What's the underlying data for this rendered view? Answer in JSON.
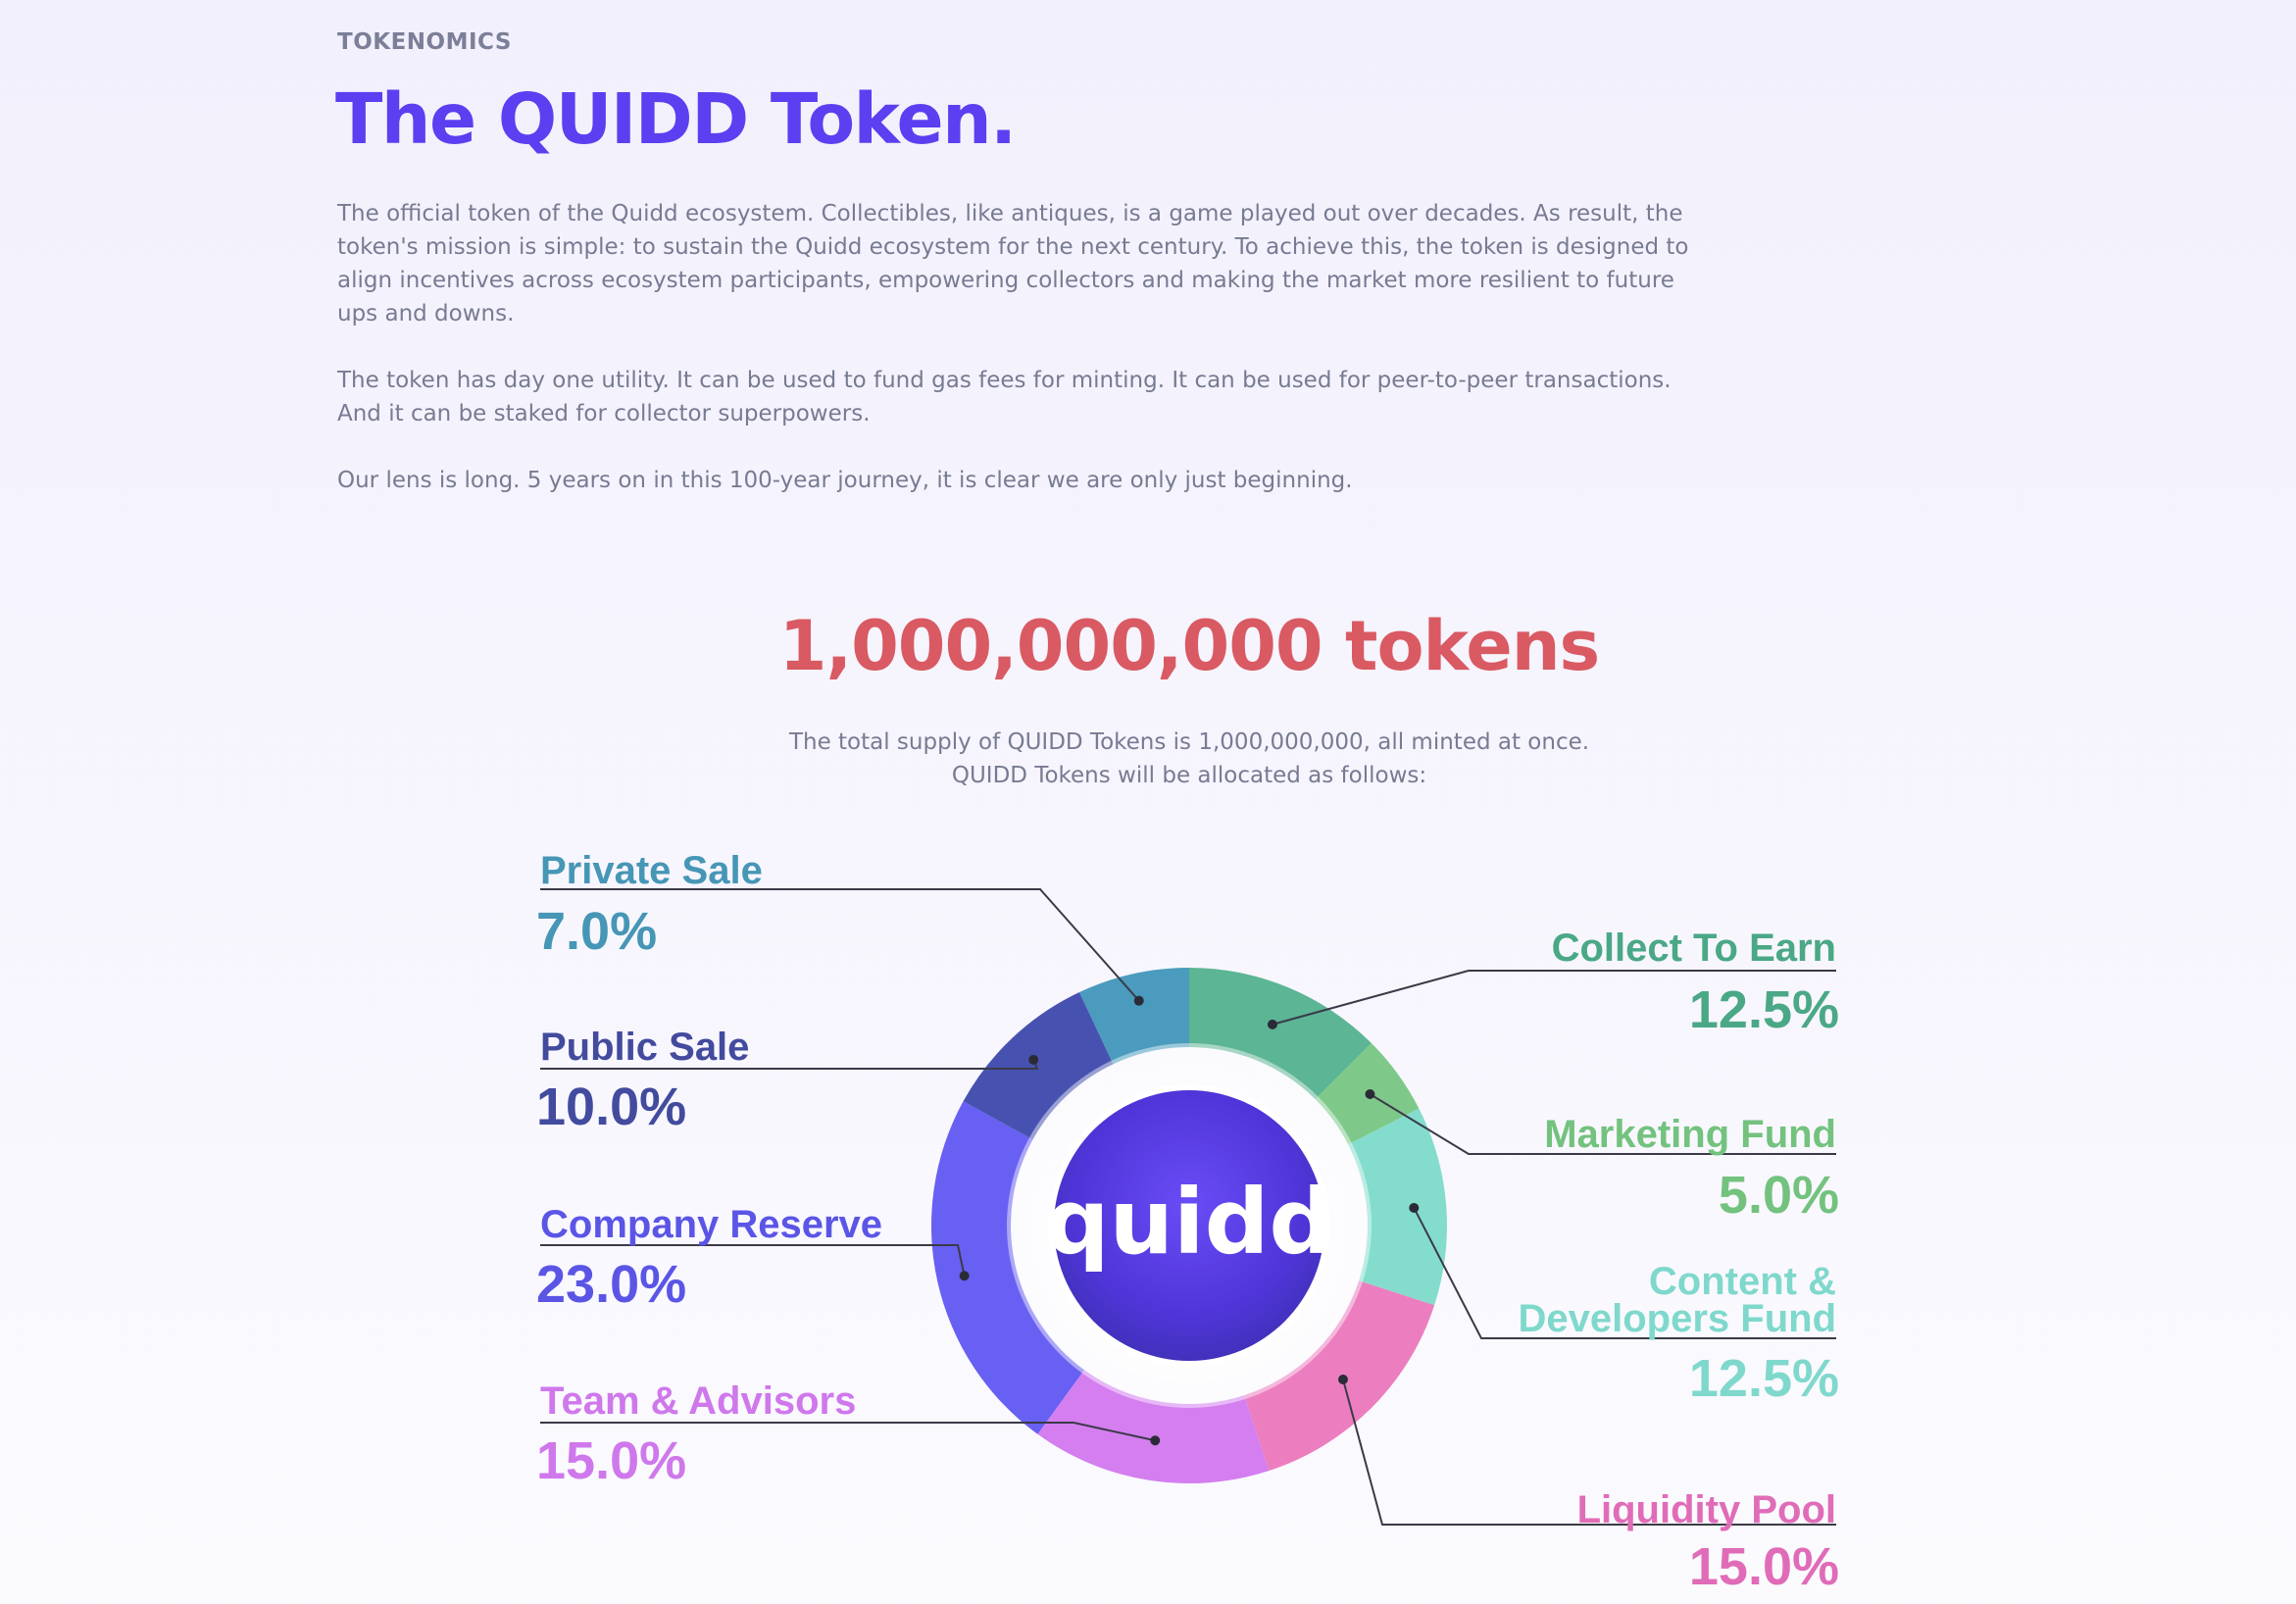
{
  "header": {
    "eyebrow": "TOKENOMICS",
    "title": "The QUIDD Token."
  },
  "intro": {
    "paragraphs": [
      "The official token of the Quidd ecosystem. Collectibles, like antiques, is a game played out over decades. As result, the token's mission is simple: to sustain the Quidd ecosystem for the next century. To achieve this, the token is designed to align incentives across ecosystem participants, empowering collectors and making the market more resilient to future ups and downs.",
      "The token has day one utility. It can be used to fund gas fees for minting. It can be used for peer-to-peer transactions. And it can be staked for collector superpowers.",
      "Our lens is long. 5 years on in this 100-year journey, it is clear we are only just beginning."
    ]
  },
  "supply": {
    "heading": "1,000,000,000 tokens",
    "line1": "The total supply of QUIDD Tokens is 1,000,000,000, all minted at once.",
    "line2": "QUIDD Tokens will be allocated as follows:"
  },
  "chart_data": {
    "type": "pie",
    "center_label": "quidd",
    "slices": [
      {
        "label": "Collect To Earn",
        "value": 12.5,
        "display": "12.5%",
        "color": "#5cb594"
      },
      {
        "label": "Marketing Fund",
        "value": 5.0,
        "display": "5.0%",
        "color": "#7ec98a"
      },
      {
        "label": "Content & Developers Fund",
        "label_lines": [
          "Content &",
          "Developers Fund"
        ],
        "value": 12.5,
        "display": "12.5%",
        "color": "#84dccd"
      },
      {
        "label": "Liquidity Pool",
        "value": 15.0,
        "display": "15.0%",
        "color": "#ec7ec0"
      },
      {
        "label": "Team & Advisors",
        "value": 15.0,
        "display": "15.0%",
        "color": "#d47ef0"
      },
      {
        "label": "Company Reserve",
        "value": 23.0,
        "display": "23.0%",
        "color": "#6860f2"
      },
      {
        "label": "Public Sale",
        "value": 10.0,
        "display": "10.0%",
        "color": "#4752b0"
      },
      {
        "label": "Private Sale",
        "value": 7.0,
        "display": "7.0%",
        "color": "#4a9bbd"
      }
    ],
    "label_colors": {
      "Collect To Earn": "#4aa886",
      "Marketing Fund": "#73c27e",
      "Content & Developers Fund": "#7fd8cc",
      "Liquidity Pool": "#e06cb8",
      "Team & Advisors": "#cf78ec",
      "Company Reserve": "#5b55e6",
      "Public Sale": "#434b9e",
      "Private Sale": "#4696b6"
    }
  }
}
